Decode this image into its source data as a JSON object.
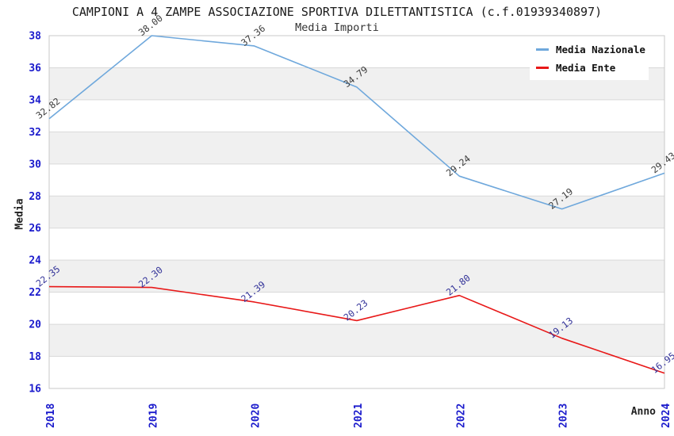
{
  "title": "CAMPIONI A 4 ZAMPE ASSOCIAZIONE SPORTIVA DILETTANTISTICA (c.f.01939340897)",
  "subtitle": "Media Importi",
  "legend": {
    "items": [
      {
        "label": "Media Nazionale",
        "color": "#6fa8dc"
      },
      {
        "label": "Media Ente",
        "color": "#e81818"
      }
    ]
  },
  "chart_data": {
    "type": "line",
    "title": "CAMPIONI A 4 ZAMPE ASSOCIAZIONE SPORTIVA DILETTANTISTICA (c.f.01939340897)",
    "subtitle": "Media Importi",
    "categories": [
      "2018",
      "2019",
      "2020",
      "2021",
      "2022",
      "2023",
      "2024"
    ],
    "series": [
      {
        "name": "Media Nazionale",
        "color": "#6fa8dc",
        "label_color": "#3c3c3c",
        "values": [
          32.82,
          38.0,
          37.36,
          34.79,
          29.24,
          27.19,
          29.43
        ]
      },
      {
        "name": "Media Ente",
        "color": "#e81818",
        "label_color": "#333399",
        "values": [
          22.35,
          22.3,
          21.39,
          20.23,
          21.8,
          19.13,
          16.95
        ]
      }
    ],
    "xlabel": "Anno",
    "ylabel": "Media",
    "ylim": [
      16,
      38
    ],
    "y_ticks": [
      16,
      18,
      20,
      22,
      24,
      26,
      28,
      30,
      32,
      34,
      36,
      38
    ],
    "y_tick_step": 2,
    "grid": true,
    "band_color": "#f0f0f0",
    "gridline_color": "#d9d9d9",
    "border_color": "#c9c9c9",
    "tick_color": "#1a1acc",
    "legend_position": "top-right"
  }
}
